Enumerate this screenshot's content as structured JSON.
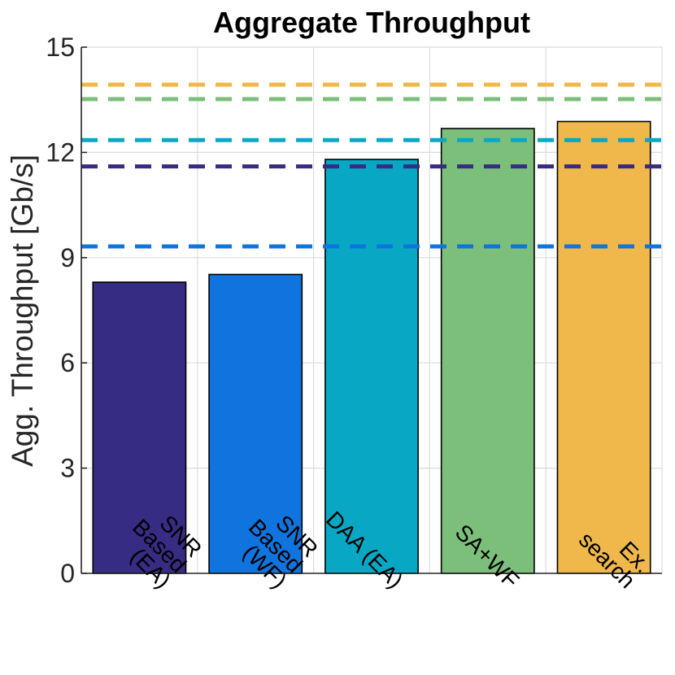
{
  "chart_data": {
    "type": "bar",
    "title": "Aggregate Throughput",
    "xlabel": "",
    "ylabel": "Agg. Throughput [Gb/s]",
    "ylim": [
      0,
      15
    ],
    "yticks": [
      0,
      3,
      6,
      9,
      12,
      15
    ],
    "grid": true,
    "categories": [
      {
        "lines": [
          "SNR",
          "Based",
          "(EA)"
        ],
        "value": 8.3,
        "color": "#372c83"
      },
      {
        "lines": [
          "SNR",
          "Based",
          "(WF)"
        ],
        "value": 8.52,
        "color": "#0f74dd"
      },
      {
        "lines": [
          "DAA (EA)"
        ],
        "value": 11.8,
        "color": "#08a8c4"
      },
      {
        "lines": [
          "SA+WF"
        ],
        "value": 12.68,
        "color": "#7bbf7a"
      },
      {
        "lines": [
          "Ex.",
          "search"
        ],
        "value": 12.88,
        "color": "#f0b84a"
      }
    ],
    "reference_lines": [
      {
        "value": 13.93,
        "color": "#f0b84a",
        "style": "dashed"
      },
      {
        "value": 13.52,
        "color": "#7bbf7a",
        "style": "dashed"
      },
      {
        "value": 12.35,
        "color": "#08a8c4",
        "style": "dashed"
      },
      {
        "value": 11.6,
        "color": "#372c83",
        "style": "dashed"
      },
      {
        "value": 9.32,
        "color": "#0f74dd",
        "style": "dashed"
      }
    ]
  }
}
